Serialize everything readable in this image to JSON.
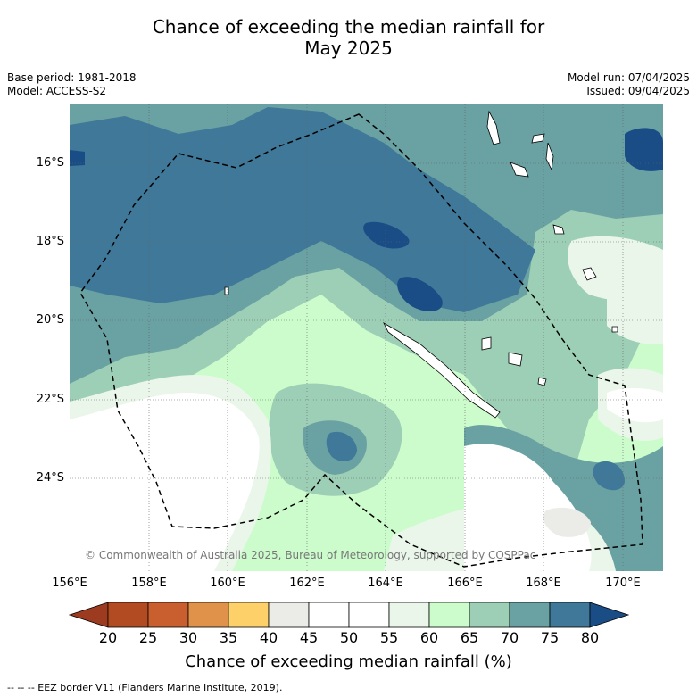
{
  "title_line1": "Chance of exceeding the median rainfall for",
  "title_line2": "May 2025",
  "meta_left": [
    "Base period: 1981-2018",
    "Model: ACCESS-S2"
  ],
  "meta_right": [
    "Model run: 07/04/2025",
    "Issued: 09/04/2025"
  ],
  "lat_labels": [
    "16°S",
    "18°S",
    "20°S",
    "22°S",
    "24°S"
  ],
  "lon_labels": [
    "156°E",
    "158°E",
    "160°E",
    "162°E",
    "164°E",
    "166°E",
    "168°E",
    "170°E"
  ],
  "copyright": "© Commonwealth of Australia 2025, Bureau of Meteorology, supported by COSPPac",
  "colorbar": {
    "ticks": [
      "20",
      "25",
      "30",
      "35",
      "40",
      "45",
      "50",
      "55",
      "60",
      "65",
      "70",
      "75",
      "80"
    ],
    "colors": [
      "#9c3b20",
      "#b24a22",
      "#c95e2f",
      "#e0924a",
      "#fdd06a",
      "#ebebe7",
      "#ffffff",
      "#ffffff",
      "#eaf6ea",
      "#ccfccc",
      "#9ccfb5",
      "#6aa1a2",
      "#3f7898",
      "#1a4d85"
    ],
    "label": "Chance of exceeding median rainfall (%)"
  },
  "footer": "--  --  -- EEZ border V11 (Flanders Marine Institute, 2019)."
}
